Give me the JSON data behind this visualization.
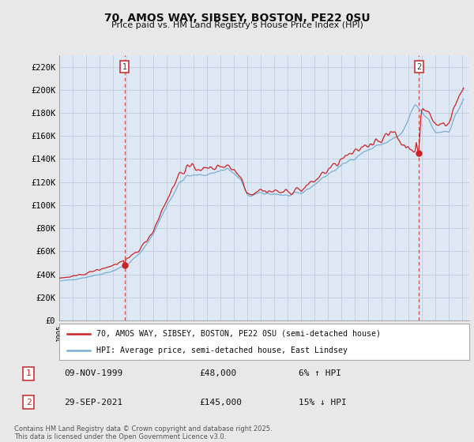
{
  "title": "70, AMOS WAY, SIBSEY, BOSTON, PE22 0SU",
  "subtitle": "Price paid vs. HM Land Registry's House Price Index (HPI)",
  "line1_color": "#cc2222",
  "line2_color": "#7aadd4",
  "vline_color": "#cc4444",
  "background_color": "#e8e8e8",
  "plot_bg_color": "#dde8f4",
  "legend1_label": "70, AMOS WAY, SIBSEY, BOSTON, PE22 0SU (semi-detached house)",
  "legend2_label": "HPI: Average price, semi-detached house, East Lindsey",
  "annotation1_date": "09-NOV-1999",
  "annotation1_price": "£48,000",
  "annotation1_hpi": "6% ↑ HPI",
  "annotation2_date": "29-SEP-2021",
  "annotation2_price": "£145,000",
  "annotation2_hpi": "15% ↓ HPI",
  "footnote": "Contains HM Land Registry data © Crown copyright and database right 2025.\nThis data is licensed under the Open Government Licence v3.0.",
  "sale1_year": 1999.86,
  "sale1_price": 48000,
  "sale2_year": 2021.75,
  "sale2_price": 145000,
  "ylim": [
    0,
    230000
  ],
  "yticks": [
    0,
    20000,
    40000,
    60000,
    80000,
    100000,
    120000,
    140000,
    160000,
    180000,
    200000,
    220000
  ],
  "ytick_labels": [
    "£0",
    "£20K",
    "£40K",
    "£60K",
    "£80K",
    "£100K",
    "£120K",
    "£140K",
    "£160K",
    "£180K",
    "£200K",
    "£220K"
  ]
}
